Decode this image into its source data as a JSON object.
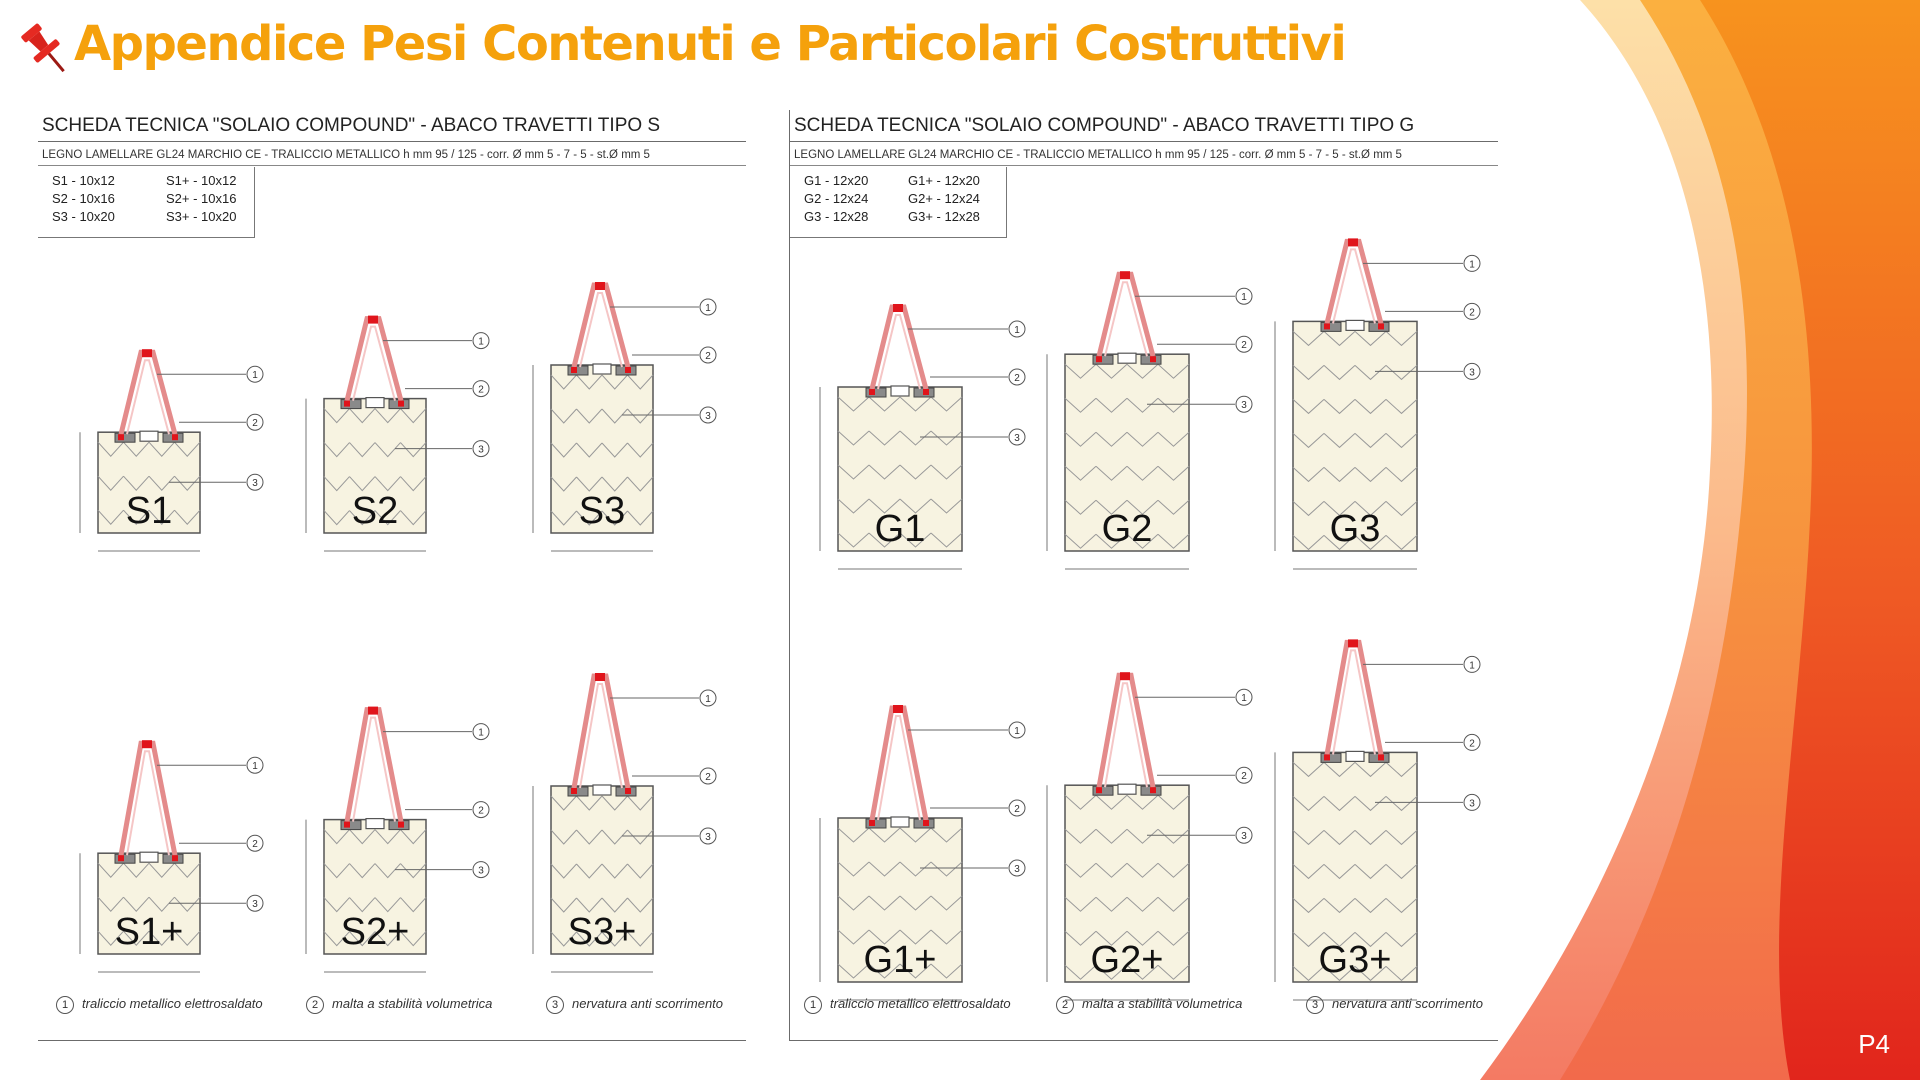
{
  "slide": {
    "title": "Appendice Pesi Contenuti e Particolari Costruttivi",
    "page_number": "P4",
    "accent_colors": {
      "title": "#f5a10c",
      "ribbon_orange": "#f28c18",
      "ribbon_red": "#e3281e",
      "pin": "#e52a22"
    }
  },
  "sheets": [
    {
      "id": "s",
      "header": "SCHEDA TECNICA \"SOLAIO COMPOUND\" - ABACO TRAVETTI TIPO S",
      "subheader": "LEGNO LAMELLARE  GL24  MARCHIO  CE - TRALICCIO METALLICO  h mm 95 / 125 - corr. Ø mm 5 - 7 - 5 - st.Ø mm 5",
      "key": [
        "S1 - 10x12",
        "S1+ - 10x12",
        "S2 - 10x16",
        "S2+ - 10x16",
        "S3 - 10x20",
        "S3+ - 10x20"
      ],
      "beams": [
        {
          "label": "S1",
          "h_units": 12,
          "truss": "9.5"
        },
        {
          "label": "S2",
          "h_units": 16,
          "truss": "9.5"
        },
        {
          "label": "S3",
          "h_units": 20,
          "truss": "9.5"
        },
        {
          "label": "S1+",
          "h_units": 12,
          "truss": "12.5"
        },
        {
          "label": "S2+",
          "h_units": 16,
          "truss": "12.5"
        },
        {
          "label": "S3+",
          "h_units": 20,
          "truss": "12.5"
        }
      ],
      "legend": [
        {
          "num": "1",
          "text": "traliccio metallico elettrosaldato"
        },
        {
          "num": "2",
          "text": "malta a stabilità volumetrica"
        },
        {
          "num": "3",
          "text": "nervatura anti scorrimento"
        }
      ]
    },
    {
      "id": "g",
      "header": "SCHEDA TECNICA \"SOLAIO COMPOUND\" - ABACO TRAVETTI TIPO G",
      "subheader": "LEGNO LAMELLARE  GL24  MARCHIO  CE - TRALICCIO METALLICO  h mm 95 / 125 - corr. Ø mm 5 - 7 - 5 - st.Ø mm 5",
      "key": [
        "G1 - 12x20",
        "G1+ - 12x20",
        "G2 - 12x24",
        "G2+ - 12x24",
        "G3 - 12x28",
        "G3+ - 12x28"
      ],
      "beams": [
        {
          "label": "G1",
          "h_units": 20,
          "truss": "9.5"
        },
        {
          "label": "G2",
          "h_units": 24,
          "truss": "9.5"
        },
        {
          "label": "G3",
          "h_units": 28,
          "truss": "9.5"
        },
        {
          "label": "G1+",
          "h_units": 20,
          "truss": "12.5"
        },
        {
          "label": "G2+",
          "h_units": 24,
          "truss": "12.5"
        },
        {
          "label": "G3+",
          "h_units": 28,
          "truss": "12.5"
        }
      ],
      "legend": [
        {
          "num": "1",
          "text": "traliccio metallico elettrosaldato"
        },
        {
          "num": "2",
          "text": "malta a stabilità volumetrica"
        },
        {
          "num": "3",
          "text": "nervatura anti scorrimento"
        }
      ]
    }
  ]
}
